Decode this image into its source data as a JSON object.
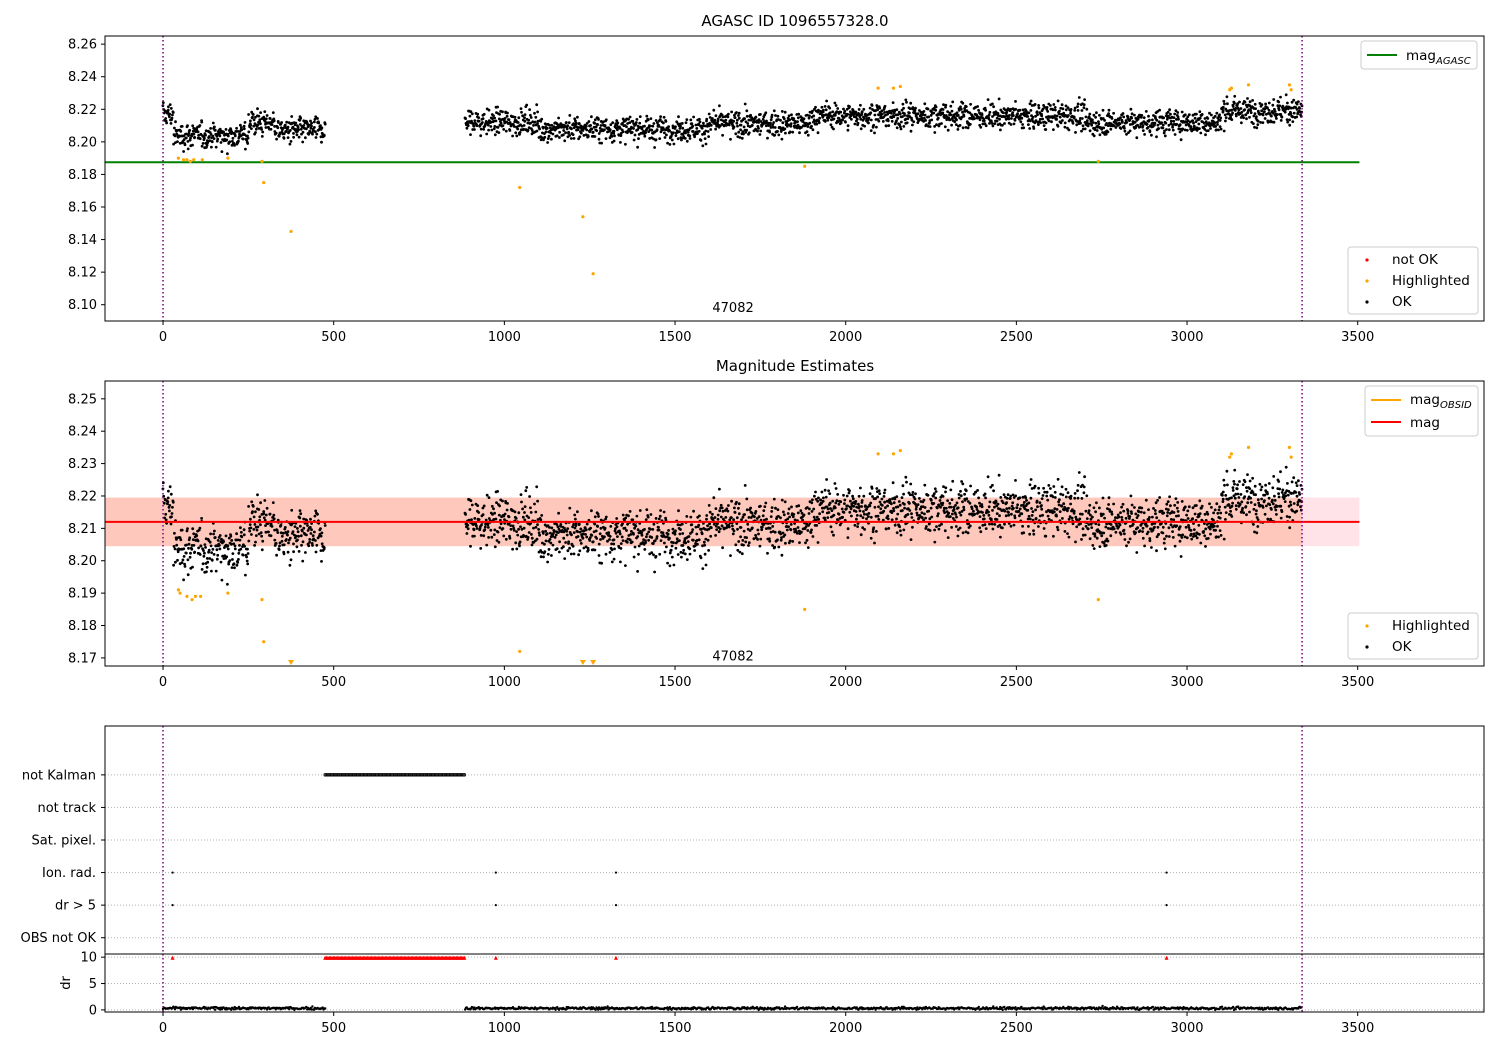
{
  "colors": {
    "ok": "#000000",
    "highlighted": "#ffa500",
    "not_ok": "#ff0000",
    "agasc_line": "#008000",
    "mag_line": "#ff0000",
    "obsid_line": "#ffa500",
    "obsid_band": "#ffa07a",
    "mag_band": "#ffc0cb",
    "vline": "#800080",
    "grid": "#b0b0b0"
  },
  "chart_data": [
    {
      "type": "scatter",
      "title": "AGASC ID 1096557328.0",
      "xlim": [
        -170,
        3870
      ],
      "ylim": [
        8.09,
        8.265
      ],
      "x_ticks": [
        0,
        500,
        1000,
        1500,
        2000,
        2500,
        3000,
        3500
      ],
      "y_ticks": [
        8.1,
        8.12,
        8.14,
        8.16,
        8.18,
        8.2,
        8.22,
        8.24,
        8.26
      ],
      "grid": false,
      "annotation": {
        "text": "47082",
        "x": 1670,
        "y": 8.098
      },
      "vlines": [
        0,
        3337
      ],
      "hlines": [
        {
          "name": "mag_AGASC",
          "y": 8.1875,
          "x_range": [
            -170,
            3505
          ]
        }
      ],
      "legends": [
        {
          "placement": "top-right",
          "entries": [
            {
              "label": "mag",
              "sub": "AGASC",
              "kind": "line",
              "color_key": "agasc_line"
            }
          ]
        },
        {
          "placement": "bottom-right",
          "entries": [
            {
              "label": "not OK",
              "kind": "dot",
              "color_key": "not_ok"
            },
            {
              "label": "Highlighted",
              "kind": "dot",
              "color_key": "highlighted"
            },
            {
              "label": "OK",
              "kind": "dot",
              "color_key": "ok"
            }
          ]
        }
      ],
      "highlighted_points": [
        [
          45,
          8.19
        ],
        [
          60,
          8.189
        ],
        [
          70,
          8.189
        ],
        [
          80,
          8.188
        ],
        [
          90,
          8.189
        ],
        [
          115,
          8.189
        ],
        [
          190,
          8.19
        ],
        [
          290,
          8.188
        ],
        [
          295,
          8.175
        ],
        [
          375,
          8.145
        ],
        [
          1045,
          8.172
        ],
        [
          1230,
          8.154
        ],
        [
          1260,
          8.119
        ],
        [
          1880,
          8.185
        ],
        [
          2095,
          8.233
        ],
        [
          2140,
          8.233
        ],
        [
          2160,
          8.234
        ],
        [
          2740,
          8.188
        ],
        [
          3125,
          8.232
        ],
        [
          3130,
          8.233
        ],
        [
          3180,
          8.235
        ],
        [
          3300,
          8.235
        ],
        [
          3305,
          8.232
        ]
      ]
    },
    {
      "type": "scatter",
      "title": "Magnitude Estimates",
      "xlim": [
        -170,
        3870
      ],
      "ylim": [
        8.1675,
        8.2555
      ],
      "x_ticks": [
        0,
        500,
        1000,
        1500,
        2000,
        2500,
        3000,
        3500
      ],
      "y_ticks": [
        8.17,
        8.18,
        8.19,
        8.2,
        8.21,
        8.22,
        8.23,
        8.24,
        8.25
      ],
      "grid": false,
      "annotation": {
        "text": "47082",
        "x": 1670,
        "y": 8.1705
      },
      "vlines": [
        0,
        3337
      ],
      "hlines": [
        {
          "name": "mag",
          "y": 8.212,
          "x_range": [
            -170,
            3505
          ]
        }
      ],
      "bands": [
        {
          "name": "mag",
          "y_range": [
            8.2045,
            8.2195
          ],
          "x_range": [
            -170,
            3505
          ]
        },
        {
          "name": "mag_OBSID",
          "y_range": [
            8.2045,
            8.2195
          ],
          "x_range": [
            -170,
            3337
          ]
        }
      ],
      "legends": [
        {
          "placement": "top-right",
          "entries": [
            {
              "label": "mag",
              "sub": "OBSID",
              "kind": "line",
              "color_key": "obsid_line"
            },
            {
              "label": "mag",
              "kind": "line",
              "color_key": "mag_line"
            }
          ]
        },
        {
          "placement": "bottom-right",
          "entries": [
            {
              "label": "Highlighted",
              "kind": "dot",
              "color_key": "highlighted"
            },
            {
              "label": "OK",
              "kind": "dot",
              "color_key": "ok"
            }
          ]
        }
      ],
      "highlighted_points": [
        [
          45,
          8.191
        ],
        [
          50,
          8.19
        ],
        [
          70,
          8.189
        ],
        [
          85,
          8.188
        ],
        [
          95,
          8.189
        ],
        [
          110,
          8.189
        ],
        [
          190,
          8.19
        ],
        [
          290,
          8.188
        ],
        [
          295,
          8.175
        ],
        [
          1045,
          8.172
        ],
        [
          1880,
          8.185
        ],
        [
          2095,
          8.233
        ],
        [
          2140,
          8.233
        ],
        [
          2160,
          8.234
        ],
        [
          2740,
          8.188
        ],
        [
          3125,
          8.232
        ],
        [
          3130,
          8.233
        ],
        [
          3180,
          8.235
        ],
        [
          3300,
          8.235
        ],
        [
          3305,
          8.232
        ]
      ],
      "below_limit_markers": [
        375,
        1230,
        1260
      ]
    },
    {
      "type": "scatter",
      "title": "",
      "xlim": [
        -170,
        3870
      ],
      "ylim": [
        -0.5,
        6.5
      ],
      "x_ticks": [],
      "y_tick_labels": [
        "OBS not OK",
        "dr > 5",
        "Ion. rad.",
        "Sat. pixel.",
        "not track",
        "not Kalman"
      ],
      "grid": true,
      "vlines": [
        0,
        3337
      ],
      "flag_rows": {
        "not Kalman": {
          "x_range": [
            475,
            885
          ],
          "step": 4
        },
        "not track": [],
        "Sat. pixel.": [],
        "Ion. rad.": [
          28,
          975,
          1327,
          2940
        ],
        "dr > 5": [
          28,
          975,
          1327,
          2940
        ],
        "OBS not OK": []
      }
    },
    {
      "type": "scatter",
      "title": "",
      "xlim": [
        -170,
        3870
      ],
      "ylim": [
        -0.4,
        10.6
      ],
      "ylabel": "dr",
      "x_ticks": [
        0,
        500,
        1000,
        1500,
        2000,
        2500,
        3000,
        3500
      ],
      "y_ticks": [
        0,
        5,
        10
      ],
      "grid": true,
      "not_ok_markers": {
        "x_range": [
          475,
          885
        ],
        "step": 4,
        "y": 9.9,
        "extra_x": [
          28,
          975,
          1327,
          2940
        ]
      },
      "dr_points": {
        "segments": [
          [
            0,
            475
          ],
          [
            885,
            3337
          ]
        ],
        "step": 2.5,
        "typical": 0.3
      }
    }
  ]
}
